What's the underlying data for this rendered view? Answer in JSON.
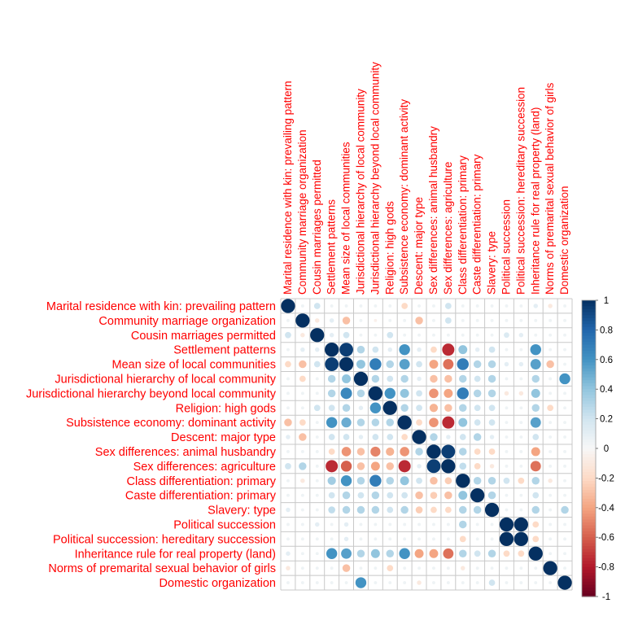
{
  "chart_data": {
    "type": "heatmap",
    "title": "",
    "variables": [
      "Marital residence with kin: prevailing pattern",
      "Community marriage organization",
      "Cousin marriages permitted",
      "Settlement patterns",
      "Mean size of local communities",
      "Jurisdictional hierarchy of local community",
      "Jurisdictional hierarchy beyond local community",
      "Religion: high gods",
      "Subsistence economy: dominant activity",
      "Descent: major type",
      "Sex differences: animal husbandry",
      "Sex differences: agriculture",
      "Class differentiation: primary",
      "Caste differentiation: primary",
      "Slavery: type",
      "Political succession",
      "Political succession: hereditary succession",
      "Inheritance rule for real property (land)",
      "Norms of premarital sexual behavior of girls",
      "Domestic organization"
    ],
    "matrix": [
      [
        1.0,
        0.05,
        0.2,
        0.05,
        0.05,
        0.05,
        0.05,
        0.05,
        -0.2,
        0.05,
        0.05,
        0.2,
        0.05,
        0.05,
        0.05,
        0.05,
        0.05,
        0.1,
        -0.1,
        0.05
      ],
      [
        0.05,
        1.0,
        -0.1,
        0.1,
        -0.3,
        0.05,
        -0.05,
        0.05,
        0.05,
        -0.3,
        0.05,
        0.2,
        0.05,
        0.05,
        0.05,
        0.05,
        0.05,
        0.05,
        0.05,
        0.05
      ],
      [
        0.2,
        -0.1,
        1.0,
        0.1,
        0.2,
        0.05,
        0.05,
        0.2,
        0.05,
        0.05,
        0.05,
        0.05,
        0.05,
        0.05,
        0.05,
        0.15,
        0.1,
        0.05,
        0.05,
        0.05
      ],
      [
        0.05,
        0.1,
        0.1,
        1.0,
        0.95,
        0.3,
        0.2,
        0.1,
        0.6,
        0.1,
        -0.2,
        -0.75,
        0.4,
        0.1,
        0.2,
        0.05,
        0.05,
        0.6,
        0.05,
        0.05
      ],
      [
        -0.2,
        -0.3,
        0.2,
        0.95,
        1.0,
        0.4,
        0.7,
        0.3,
        0.55,
        0.2,
        -0.4,
        -0.55,
        0.7,
        0.3,
        0.3,
        0.1,
        0.1,
        0.55,
        -0.3,
        0.05
      ],
      [
        0.05,
        -0.2,
        0.05,
        0.3,
        0.4,
        1.0,
        0.3,
        0.2,
        0.3,
        0.1,
        -0.3,
        -0.3,
        0.3,
        0.2,
        0.3,
        0.05,
        0.05,
        0.3,
        0.05,
        0.6
      ],
      [
        0.05,
        0.05,
        0.05,
        0.3,
        0.65,
        0.3,
        1.0,
        0.6,
        0.4,
        0.2,
        -0.45,
        -0.4,
        0.7,
        0.3,
        0.3,
        -0.1,
        -0.1,
        0.4,
        0.05,
        0.05
      ],
      [
        0.05,
        0.05,
        0.2,
        0.2,
        0.3,
        0.1,
        0.6,
        1.0,
        0.3,
        0.2,
        -0.35,
        -0.3,
        0.3,
        0.2,
        0.2,
        0.05,
        0.05,
        0.3,
        -0.2,
        0.05
      ],
      [
        -0.3,
        -0.2,
        0.05,
        0.6,
        0.5,
        0.3,
        0.3,
        0.3,
        1.0,
        -0.2,
        -0.45,
        -0.75,
        0.4,
        0.2,
        0.2,
        0.05,
        0.05,
        0.55,
        0.05,
        0.05
      ],
      [
        0.1,
        -0.3,
        0.05,
        0.2,
        0.2,
        0.1,
        0.2,
        0.2,
        -0.2,
        1.0,
        0.3,
        0.1,
        0.2,
        0.3,
        0.1,
        0.05,
        0.05,
        0.2,
        0.05,
        0.05
      ],
      [
        0.05,
        0.05,
        0.05,
        -0.2,
        -0.45,
        -0.3,
        -0.5,
        -0.35,
        -0.45,
        0.3,
        1.0,
        0.95,
        0.3,
        -0.2,
        -0.2,
        0.05,
        0.05,
        -0.4,
        0.05,
        0.05
      ],
      [
        0.2,
        0.3,
        0.05,
        -0.75,
        -0.6,
        -0.3,
        -0.4,
        -0.3,
        -0.75,
        0.1,
        0.95,
        1.0,
        0.25,
        -0.2,
        -0.1,
        0.05,
        0.05,
        -0.55,
        0.05,
        0.05
      ],
      [
        0.05,
        -0.1,
        0.05,
        0.35,
        0.6,
        0.3,
        0.7,
        0.3,
        0.4,
        0.2,
        -0.3,
        -0.25,
        1.0,
        0.3,
        0.3,
        0.2,
        -0.2,
        0.3,
        -0.1,
        0.05
      ],
      [
        0.05,
        0.05,
        0.05,
        0.2,
        0.3,
        0.2,
        0.3,
        0.2,
        0.2,
        -0.3,
        -0.25,
        -0.3,
        0.4,
        1.0,
        0.3,
        0.05,
        0.05,
        0.2,
        0.05,
        0.05
      ],
      [
        0.1,
        0.05,
        0.05,
        0.25,
        0.3,
        0.3,
        0.3,
        0.2,
        0.3,
        -0.25,
        -0.2,
        -0.2,
        0.3,
        0.3,
        1.0,
        0.05,
        0.05,
        0.3,
        0.05,
        0.3
      ],
      [
        0.05,
        0.05,
        0.1,
        0.05,
        0.1,
        0.05,
        0.05,
        0.05,
        0.05,
        0.05,
        0.05,
        0.05,
        0.3,
        0.05,
        0.05,
        1.0,
        1.0,
        -0.2,
        0.05,
        0.05
      ],
      [
        0.05,
        0.05,
        0.05,
        0.05,
        0.1,
        0.05,
        0.05,
        0.05,
        0.05,
        0.05,
        0.05,
        0.05,
        -0.2,
        0.05,
        0.05,
        1.0,
        1.0,
        -0.2,
        0.05,
        0.05
      ],
      [
        0.1,
        0.05,
        0.05,
        0.6,
        0.55,
        0.3,
        0.4,
        0.3,
        0.6,
        -0.4,
        -0.4,
        -0.55,
        0.3,
        0.2,
        0.3,
        -0.2,
        -0.2,
        1.0,
        0.05,
        0.05
      ],
      [
        -0.1,
        0.05,
        0.05,
        0.05,
        -0.3,
        0.05,
        0.05,
        -0.2,
        0.05,
        0.05,
        0.05,
        0.05,
        -0.1,
        0.05,
        0.05,
        0.05,
        0.05,
        0.05,
        1.0,
        0.05
      ],
      [
        0.05,
        0.05,
        0.05,
        0.05,
        0.05,
        0.6,
        0.05,
        0.05,
        0.05,
        -0.1,
        0.05,
        0.05,
        0.05,
        0.05,
        0.2,
        0.05,
        0.05,
        0.05,
        0.05,
        1.0
      ]
    ],
    "value_range": [
      -1,
      1
    ],
    "colorbar_ticks": [
      "1",
      "0.8",
      "0.6",
      "0.4",
      "0.2",
      "0",
      "-0.2",
      "-0.4",
      "-0.6",
      "-0.8",
      "-1"
    ],
    "label_color": "#ff0000",
    "colors": {
      "neg": "#67001f",
      "mid": "#f7f7f7",
      "pos": "#053061"
    },
    "grid": true
  }
}
